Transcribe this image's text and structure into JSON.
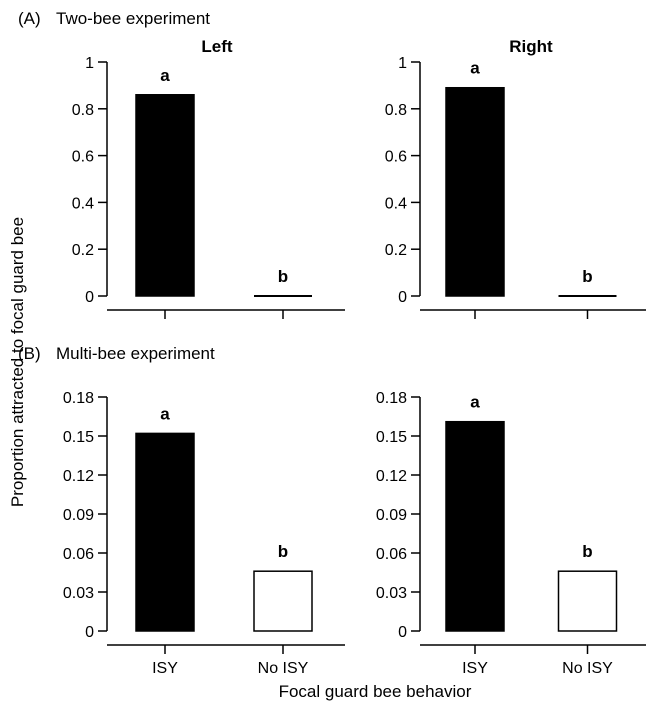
{
  "figure": {
    "ylabel": "Proportion attracted to focal guard bee",
    "xlabel": "Focal guard bee behavior"
  },
  "panel_labels": [
    "(A)",
    "(B)"
  ],
  "panel_titles": [
    "Two-bee experiment",
    "Multi-bee experiment"
  ],
  "colors": {
    "filled": "#000000",
    "open": "#ffffff",
    "axis": "#000000"
  },
  "chart_data": [
    {
      "type": "bar",
      "panel": "A",
      "title": "Left",
      "categories": [
        "",
        ""
      ],
      "values": [
        0.86,
        0.0
      ],
      "letters": [
        "a",
        "b"
      ],
      "fills": [
        "filled",
        "filled"
      ],
      "ylim": [
        0,
        1
      ],
      "yticks": [
        0,
        0.2,
        0.4,
        0.6,
        0.8,
        1
      ],
      "ytick_labels": [
        "0",
        "0.2",
        "0.4",
        "0.6",
        "0.8",
        "1"
      ]
    },
    {
      "type": "bar",
      "panel": "A",
      "title": "Right",
      "categories": [
        "",
        ""
      ],
      "values": [
        0.89,
        0.0
      ],
      "letters": [
        "a",
        "b"
      ],
      "fills": [
        "filled",
        "filled"
      ],
      "ylim": [
        0,
        1
      ],
      "yticks": [
        0,
        0.2,
        0.4,
        0.6,
        0.8,
        1
      ],
      "ytick_labels": [
        "0",
        "0.2",
        "0.4",
        "0.6",
        "0.8",
        "1"
      ]
    },
    {
      "type": "bar",
      "panel": "B",
      "title": "",
      "categories": [
        "ISY",
        "No ISY"
      ],
      "values": [
        0.152,
        0.046
      ],
      "letters": [
        "a",
        "b"
      ],
      "fills": [
        "filled",
        "open"
      ],
      "ylim": [
        0,
        0.18
      ],
      "yticks": [
        0,
        0.03,
        0.06,
        0.09,
        0.12,
        0.15,
        0.18
      ],
      "ytick_labels": [
        "0",
        "0.03",
        "0.06",
        "0.09",
        "0.12",
        "0.15",
        "0.18"
      ]
    },
    {
      "type": "bar",
      "panel": "B",
      "title": "",
      "categories": [
        "ISY",
        "No ISY"
      ],
      "values": [
        0.161,
        0.046
      ],
      "letters": [
        "a",
        "b"
      ],
      "fills": [
        "filled",
        "open"
      ],
      "ylim": [
        0,
        0.18
      ],
      "yticks": [
        0,
        0.03,
        0.06,
        0.09,
        0.12,
        0.15,
        0.18
      ],
      "ytick_labels": [
        "0",
        "0.03",
        "0.06",
        "0.09",
        "0.12",
        "0.15",
        "0.18"
      ]
    }
  ]
}
